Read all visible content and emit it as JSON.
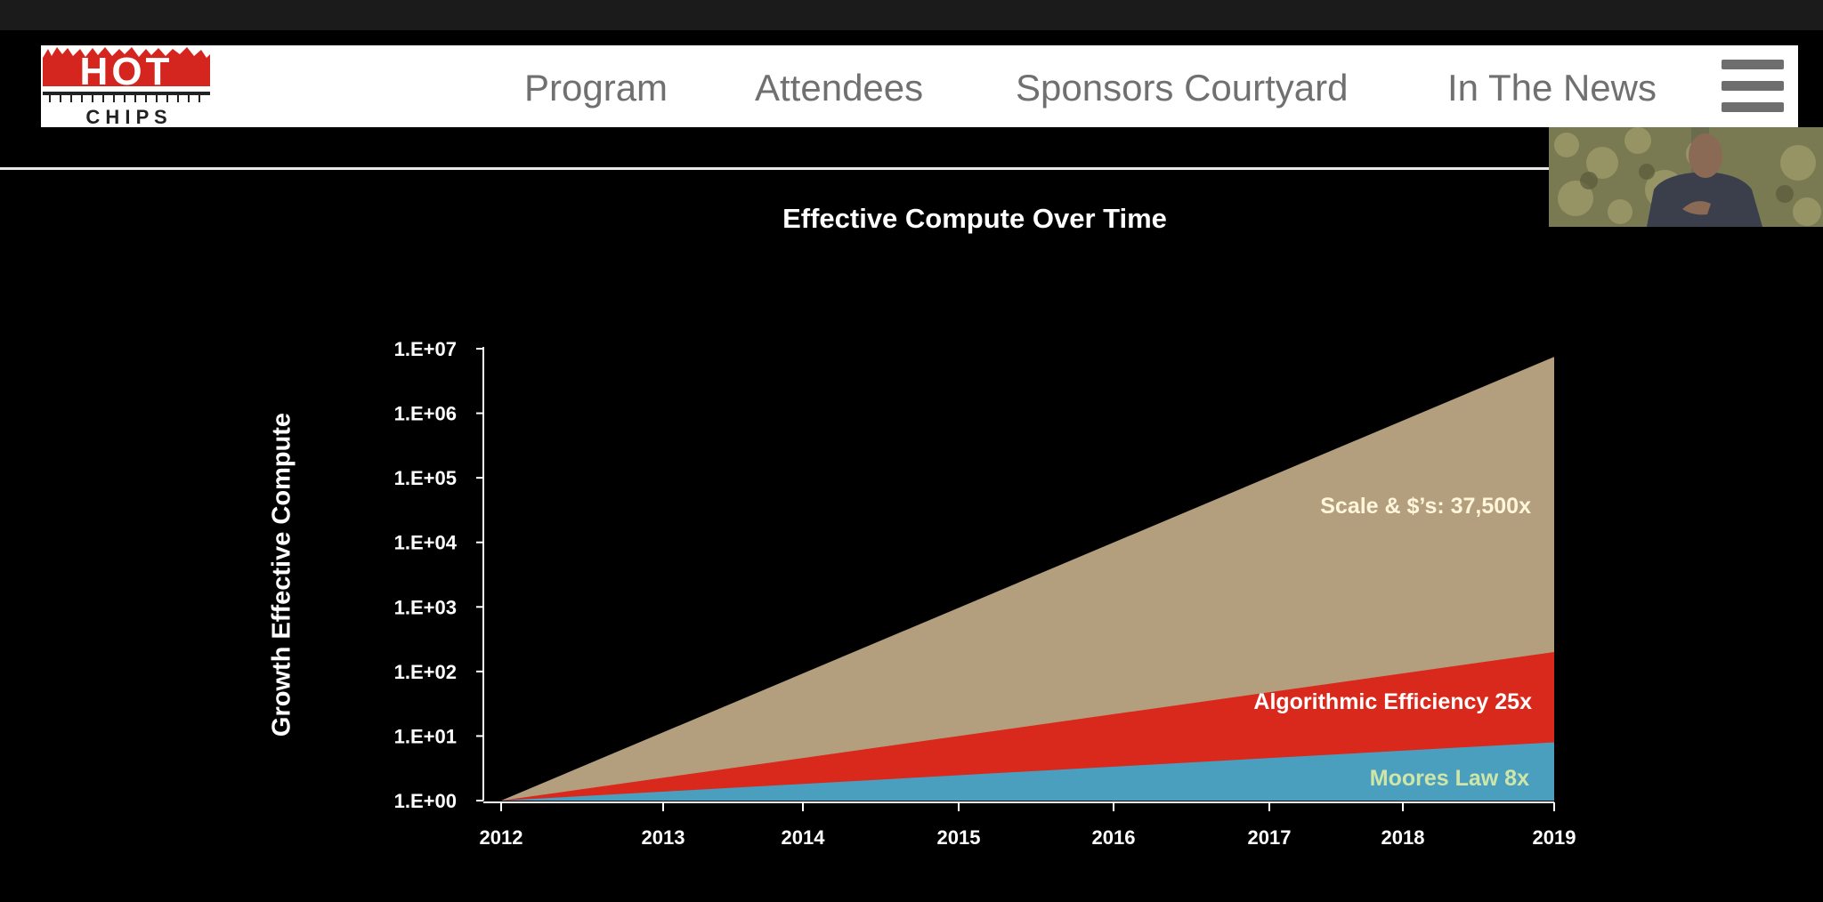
{
  "header": {
    "logo": {
      "top_text": "HOT",
      "bottom_text": "C H I P S"
    },
    "nav_items": [
      "Program",
      "Attendees",
      "Sponsors Courtyard",
      "In The News"
    ],
    "menu_icon": "hamburger-menu-icon"
  },
  "chart_data": {
    "type": "area",
    "title": "Effective Compute Over Time",
    "ylabel": "Growth Effective Compute",
    "xlabel": "",
    "yscale": "log",
    "ylim": [
      1,
      10000000
    ],
    "x": [
      2012,
      2013,
      2014,
      2015,
      2016,
      2017,
      2018,
      2019
    ],
    "ytick_labels": [
      "1.E+00",
      "1.E+01",
      "1.E+02",
      "1.E+03",
      "1.E+04",
      "1.E+05",
      "1.E+06",
      "1.E+07"
    ],
    "series": [
      {
        "name": "Moores Law 8x",
        "label": "Moores Law 8x",
        "start": 1,
        "end": 8,
        "color": "#4a9fbf",
        "label_color": "#cfe6a8"
      },
      {
        "name": "Algorithmic Efficiency 25x",
        "label": "Algorithmic Efficiency 25x",
        "start": 1,
        "end": 200,
        "color": "#d9281c",
        "label_color": "#ffffff"
      },
      {
        "name": "Scale & $'s: 37,500x",
        "label": "Scale & $’s: 37,500x",
        "start": 1,
        "end": 7500000,
        "color": "#b39f7d",
        "label_color": "#fff6dc"
      }
    ]
  }
}
